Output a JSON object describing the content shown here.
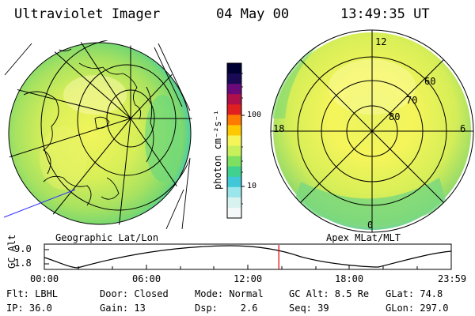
{
  "header": {
    "instrument": "Ultraviolet Imager",
    "date": "04 May 00",
    "time": "13:49:35 UT"
  },
  "colorbar": {
    "label": "photon cm⁻²s⁻¹",
    "ticks": [
      "100",
      "10"
    ],
    "colors": [
      "#000033",
      "#1a0a55",
      "#6a0a7a",
      "#b0104a",
      "#e02020",
      "#ff7a00",
      "#ffc800",
      "#f5f55a",
      "#c8f05a",
      "#7ee060",
      "#40d090",
      "#40c8d8",
      "#9ae6ea",
      "#d8f2f0",
      "#f4f8f8"
    ]
  },
  "left_map": {
    "caption": "Geographic Lat/Lon"
  },
  "right_map": {
    "caption": "Apex MLat/MLT",
    "mlt_labels": [
      "12",
      "18",
      "6",
      "0"
    ],
    "mlat_labels": [
      "60",
      "70",
      "80"
    ]
  },
  "timeline": {
    "axis_label": "GC Alt",
    "y_ticks": [
      "9.0",
      "1.8"
    ],
    "x_ticks": [
      "00:00",
      "06:00",
      "12:00",
      "18:00",
      "23:59"
    ],
    "current_time_hours": 13.83,
    "marker_color": "#dd0000"
  },
  "footer": {
    "rows": [
      [
        "Flt: LBHL",
        "Door: Closed",
        "Mode: Normal",
        "GC Alt: 8.5 Re",
        "GLat:  74.8"
      ],
      [
        "IP: 36.0",
        "Gain: 13",
        "Dsp:    2.6",
        "Seq: 39",
        "GLon: 297.0"
      ]
    ]
  }
}
